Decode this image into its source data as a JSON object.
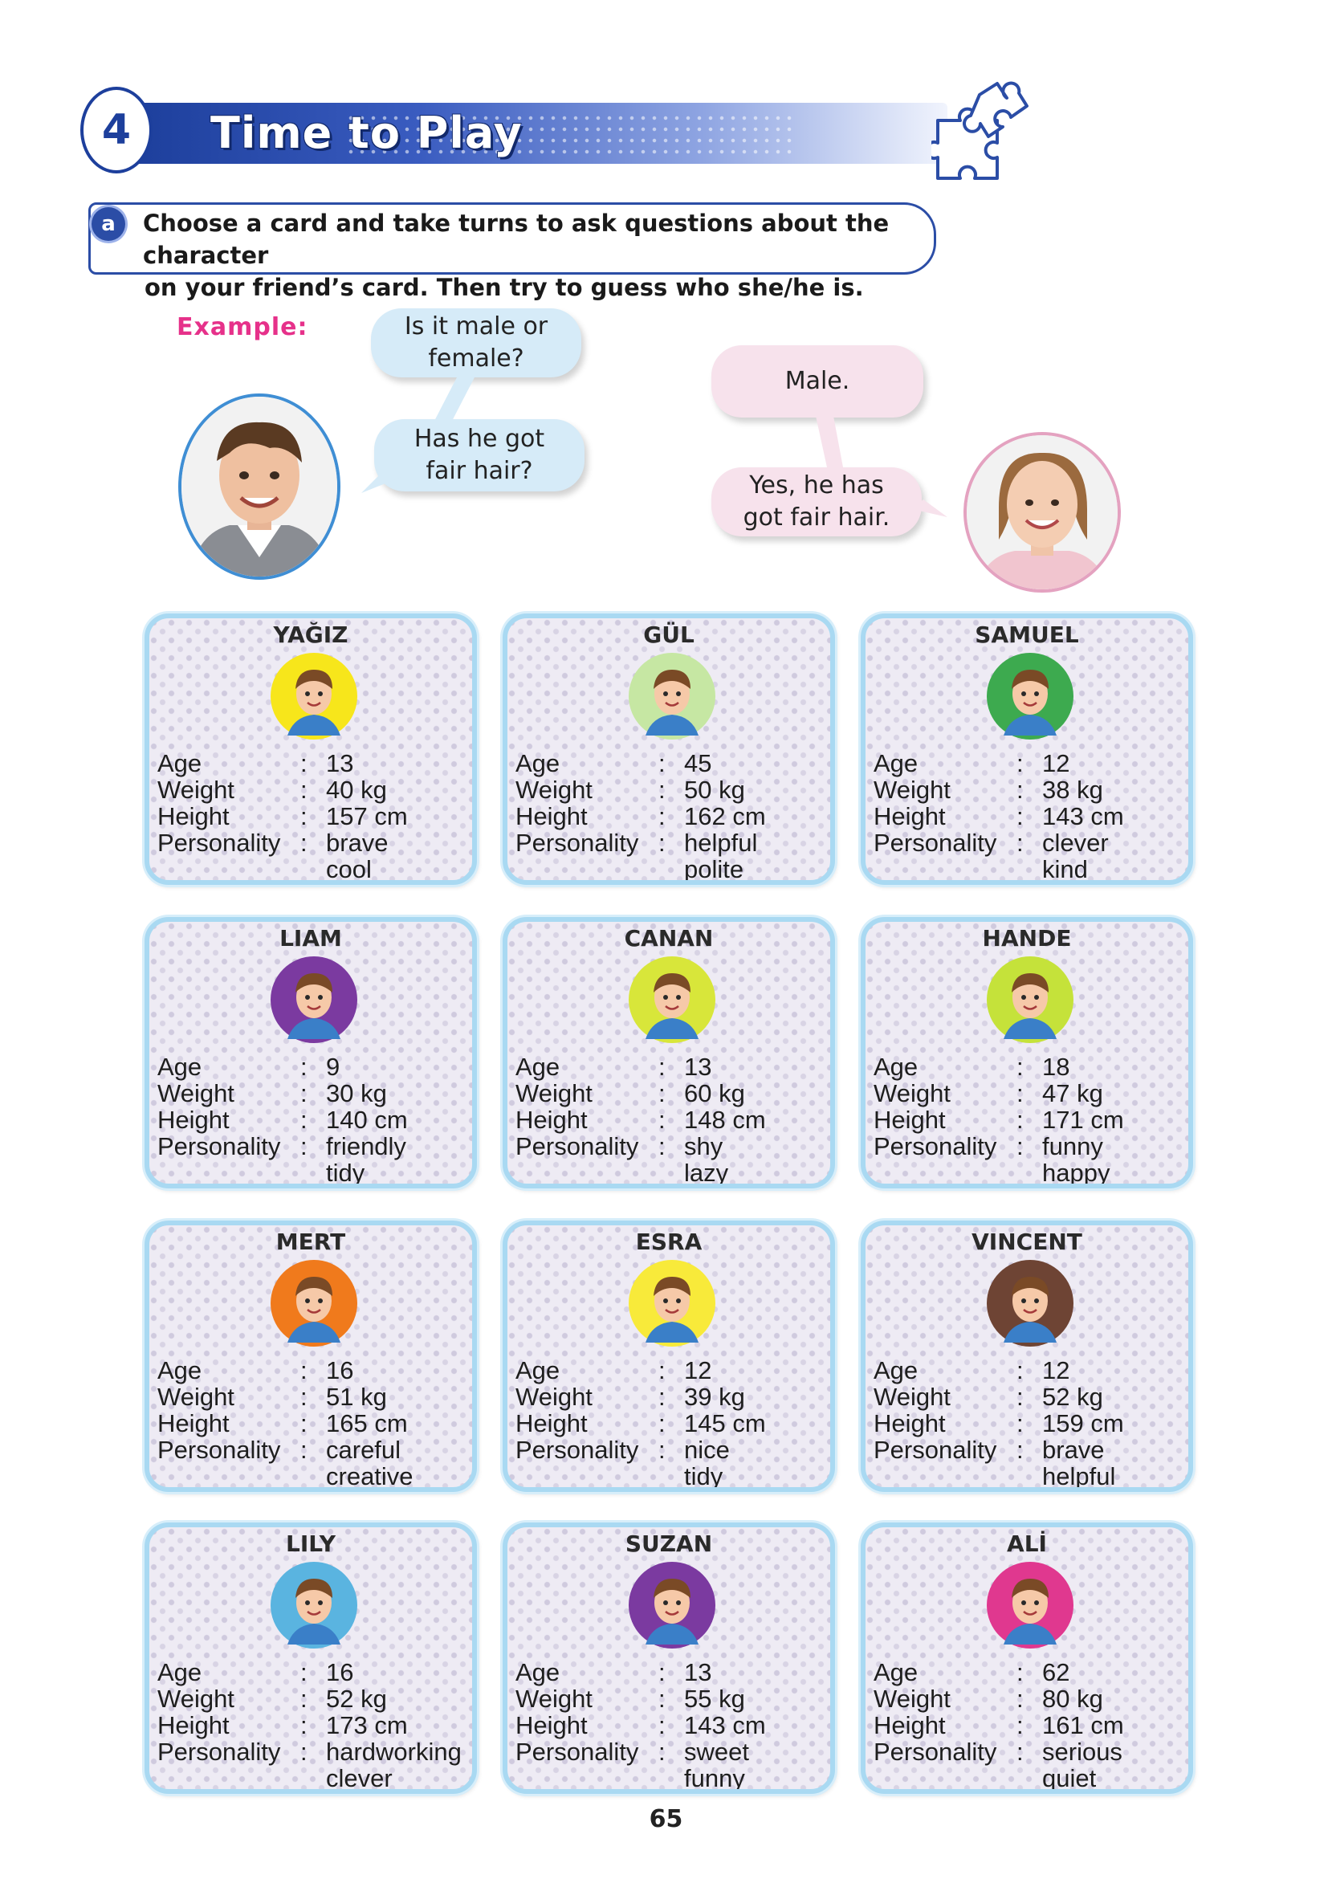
{
  "section": {
    "number": "4",
    "title": "Time to Play"
  },
  "instruction": {
    "badge": "a",
    "lines": [
      "Choose a card and take turns to ask questions about the character",
      "on your friend’s card. Then try to guess who she/he is."
    ]
  },
  "example": {
    "label": "Example:",
    "boy_bubbles": [
      "Is it male or female?",
      "Has he got fair hair?"
    ],
    "girl_bubbles": [
      "Male.",
      "Yes, he has got fair hair."
    ]
  },
  "field_labels": {
    "age": "Age",
    "weight": "Weight",
    "height": "Height",
    "personality": "Personality"
  },
  "cards": [
    {
      "name": "YAĞIZ",
      "age": "13",
      "weight": "40 kg",
      "height": "157 cm",
      "personality": [
        "brave",
        "cool"
      ],
      "avatar_bg": "#f7e61b",
      "avatar": "boy-avatar-icon"
    },
    {
      "name": "GÜL",
      "age": "45",
      "weight": "50 kg",
      "height": "162 cm",
      "personality": [
        "helpful",
        "polite"
      ],
      "avatar_bg": "#c6e7a3",
      "avatar": "woman-avatar-icon"
    },
    {
      "name": "SAMUEL",
      "age": "12",
      "weight": "38 kg",
      "height": "143 cm",
      "personality": [
        "clever",
        "kind"
      ],
      "avatar_bg": "#3daa4f",
      "avatar": "boy-glasses-avatar-icon"
    },
    {
      "name": "LIAM",
      "age": "9",
      "weight": "30 kg",
      "height": "140 cm",
      "personality": [
        "friendly",
        "tidy"
      ],
      "avatar_bg": "#7b3aa0",
      "avatar": "boy-cap-avatar-icon"
    },
    {
      "name": "CANAN",
      "age": "13",
      "weight": "60 kg",
      "height": "148 cm",
      "personality": [
        "shy",
        "lazy"
      ],
      "avatar_bg": "#d8e63a",
      "avatar": "girl-avatar-icon"
    },
    {
      "name": "HANDE",
      "age": "18",
      "weight": "47 kg",
      "height": "171 cm",
      "personality": [
        "funny",
        "happy"
      ],
      "avatar_bg": "#c5e23a",
      "avatar": "girl-redhair-avatar-icon"
    },
    {
      "name": "MERT",
      "age": "16",
      "weight": "51 kg",
      "height": "165 cm",
      "personality": [
        "careful",
        "creative"
      ],
      "avatar_bg": "#f07a1c",
      "avatar": "boy-spiky-avatar-icon"
    },
    {
      "name": "ESRA",
      "age": "12",
      "weight": "39 kg",
      "height": "145 cm",
      "personality": [
        "nice",
        "tidy"
      ],
      "avatar_bg": "#f8ea3a",
      "avatar": "girl-bow-avatar-icon"
    },
    {
      "name": "VINCENT",
      "age": "12",
      "weight": "52 kg",
      "height": "159 cm",
      "personality": [
        "brave",
        "helpful"
      ],
      "avatar_bg": "#6e4434",
      "avatar": "boy-redhair-avatar-icon"
    },
    {
      "name": "LILY",
      "age": "16",
      "weight": "52 kg",
      "height": "173 cm",
      "personality": [
        "hardworking",
        "clever"
      ],
      "avatar_bg": "#5ab4e0",
      "avatar": "girl-glasses-avatar-icon"
    },
    {
      "name": "SUZAN",
      "age": "13",
      "weight": "55 kg",
      "height": "143 cm",
      "personality": [
        "sweet",
        "funny"
      ],
      "avatar_bg": "#7b3aa0",
      "avatar": "girl-braids-avatar-icon"
    },
    {
      "name": "ALİ",
      "age": "62",
      "weight": "80 kg",
      "height": "161 cm",
      "personality": [
        "serious",
        "quiet"
      ],
      "avatar_bg": "#e0388f",
      "avatar": "grandpa-avatar-icon"
    }
  ],
  "page_number": "65"
}
